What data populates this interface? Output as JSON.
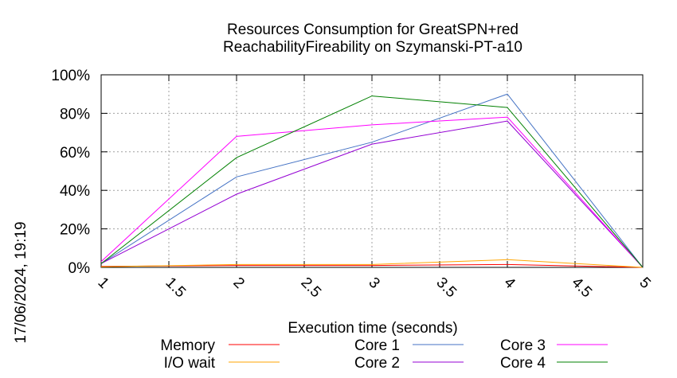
{
  "chart_data": {
    "type": "line",
    "title_line1": "Resources Consumption for GreatSPN+red",
    "title_line2": "ReachabilityFireability on Szymanski-PT-a10",
    "xlabel": "Execution time (seconds)",
    "ylabel": "",
    "timestamp": "17/06/2024, 19:19",
    "xlim": [
      1,
      5
    ],
    "ylim": [
      0,
      100
    ],
    "grid": true,
    "legend_position": "bottom",
    "x_ticks": [
      {
        "value": 1,
        "label": "1"
      },
      {
        "value": 1.5,
        "label": "1.5"
      },
      {
        "value": 2,
        "label": "2"
      },
      {
        "value": 2.5,
        "label": "2.5"
      },
      {
        "value": 3,
        "label": "3"
      },
      {
        "value": 3.5,
        "label": "3.5"
      },
      {
        "value": 4,
        "label": "4"
      },
      {
        "value": 4.5,
        "label": "4.5"
      },
      {
        "value": 5,
        "label": "5"
      }
    ],
    "y_ticks": [
      {
        "value": 0,
        "label": "0%"
      },
      {
        "value": 20,
        "label": "20%"
      },
      {
        "value": 40,
        "label": "40%"
      },
      {
        "value": 60,
        "label": "60%"
      },
      {
        "value": 80,
        "label": "80%"
      },
      {
        "value": 100,
        "label": "100%"
      }
    ],
    "x": [
      1,
      2,
      3,
      4,
      5
    ],
    "series": [
      {
        "name": "Memory",
        "color": "#ff0000",
        "values": [
          0.5,
          1.0,
          1.0,
          1.5,
          0
        ]
      },
      {
        "name": "I/O wait",
        "color": "#ffa500",
        "values": [
          0.3,
          1.5,
          1.5,
          4.0,
          0
        ]
      },
      {
        "name": "Core 1",
        "color": "#4472c4",
        "values": [
          2,
          47,
          65,
          90,
          0
        ]
      },
      {
        "name": "Core 2",
        "color": "#9400d3",
        "values": [
          2,
          38,
          64,
          76,
          0
        ]
      },
      {
        "name": "Core 3",
        "color": "#ff00ff",
        "values": [
          3,
          68,
          74,
          78,
          0
        ]
      },
      {
        "name": "Core 4",
        "color": "#008000",
        "values": [
          2,
          57,
          89,
          83,
          0
        ]
      }
    ]
  }
}
